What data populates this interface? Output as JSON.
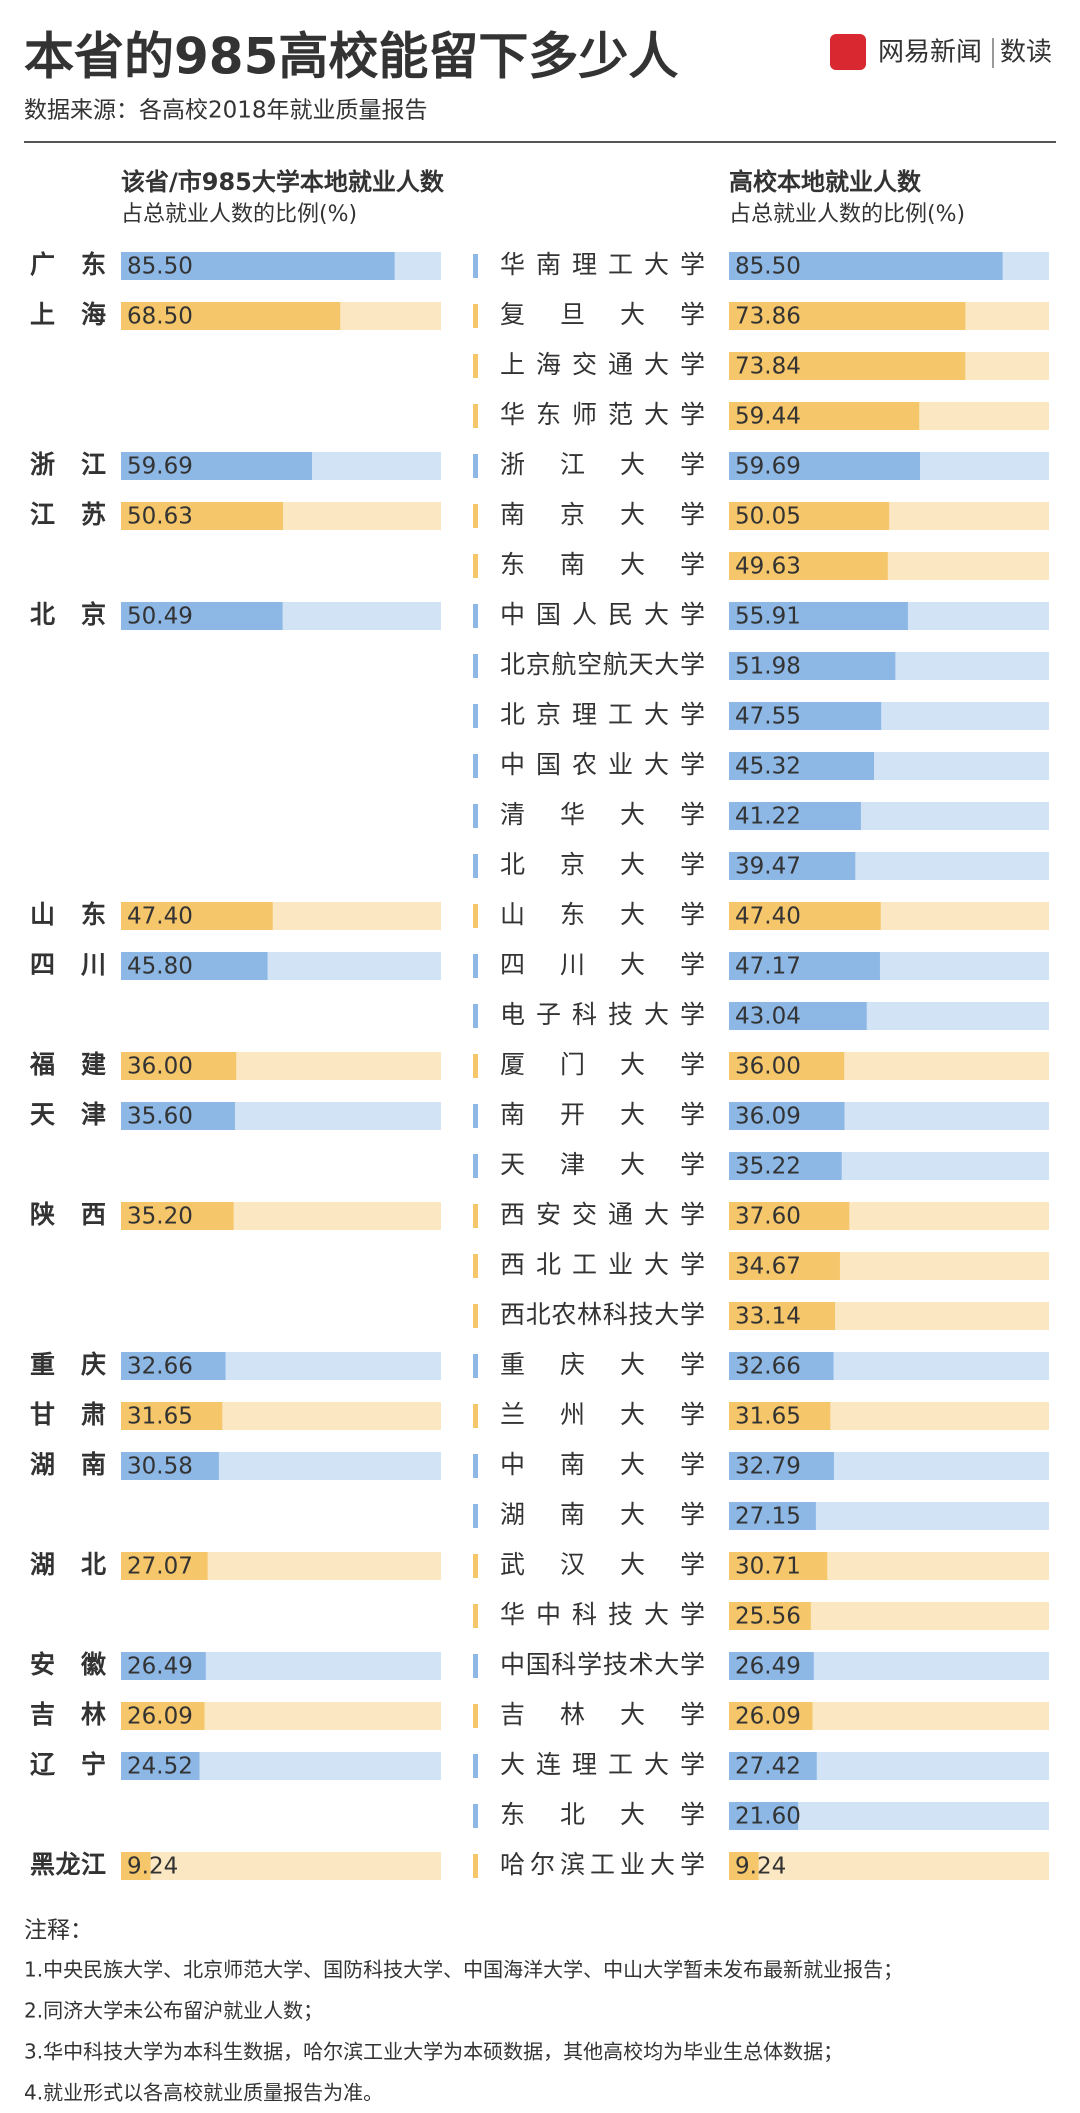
{
  "chart_data": {
    "type": "paired-bar",
    "title": "本省的985高校能留下多少人",
    "brand": "网易新闻",
    "brand_sub": "数读",
    "source": "数据来源：各高校2018年就业质量报告",
    "left_header": "该省/市985大学本地就业人数",
    "left_subheader": "占总就业人数的比例(%)",
    "right_header": "高校本地就业人数",
    "right_subheader": "占总就业人数的比例(%)",
    "xlim": [
      0,
      100
    ],
    "groups": [
      {
        "name": "广东",
        "color": "#8db8e6",
        "value": 85.5,
        "value_label": "85.50",
        "universities": [
          {
            "name": "华南理工大学",
            "value": 85.5,
            "value_label": "85.50"
          }
        ]
      },
      {
        "name": "上海",
        "color": "#f6c66a",
        "value": 68.5,
        "value_label": "68.50",
        "universities": [
          {
            "name": "复旦大学",
            "value": 73.86
          },
          {
            "name": "上海交通大学",
            "value": 73.84
          },
          {
            "name": "华东师范大学",
            "value": 59.44
          }
        ]
      },
      {
        "name": "浙江",
        "color": "#8db8e6",
        "value": 59.69,
        "universities": [
          {
            "name": "浙江大学",
            "value": 59.69
          }
        ]
      },
      {
        "name": "江苏",
        "color": "#f6c66a",
        "value": 50.63,
        "universities": [
          {
            "name": "南京大学",
            "value": 50.05
          },
          {
            "name": "东南大学",
            "value": 49.63
          }
        ]
      },
      {
        "name": "北京",
        "color": "#8db8e6",
        "value": 50.49,
        "universities": [
          {
            "name": "中国人民大学",
            "value": 55.91
          },
          {
            "name": "北京航空航天大学",
            "value": 51.98
          },
          {
            "name": "北京理工大学",
            "value": 47.55
          },
          {
            "name": "中国农业大学",
            "value": 45.32
          },
          {
            "name": "清华大学",
            "value": 41.22
          },
          {
            "name": "北京大学",
            "value": 39.47
          }
        ]
      },
      {
        "name": "山东",
        "color": "#f6c66a",
        "value": 47.4,
        "value_label": "47.40",
        "universities": [
          {
            "name": "山东大学",
            "value": 47.4,
            "value_label": "47.40"
          }
        ]
      },
      {
        "name": "四川",
        "color": "#8db8e6",
        "value": 45.8,
        "value_label": "45.80",
        "universities": [
          {
            "name": "四川大学",
            "value": 47.17
          },
          {
            "name": "电子科技大学",
            "value": 43.04
          }
        ]
      },
      {
        "name": "福建",
        "color": "#f6c66a",
        "value": 36,
        "value_label": "36.00",
        "universities": [
          {
            "name": "厦门大学",
            "value": 36,
            "value_label": "36.00"
          }
        ]
      },
      {
        "name": "天津",
        "color": "#8db8e6",
        "value": 35.6,
        "value_label": "35.60",
        "universities": [
          {
            "name": "南开大学",
            "value": 36.09
          },
          {
            "name": "天津大学",
            "value": 35.22
          }
        ]
      },
      {
        "name": "陕西",
        "color": "#f6c66a",
        "value": 35.2,
        "value_label": "35.20",
        "universities": [
          {
            "name": "西安交通大学",
            "value": 37.6,
            "value_label": "37.60"
          },
          {
            "name": "西北工业大学",
            "value": 34.67
          },
          {
            "name": "西北农林科技大学",
            "value": 33.14
          }
        ]
      },
      {
        "name": "重庆",
        "color": "#8db8e6",
        "value": 32.66,
        "universities": [
          {
            "name": "重庆大学",
            "value": 32.66
          }
        ]
      },
      {
        "name": "甘肃",
        "color": "#f6c66a",
        "value": 31.65,
        "universities": [
          {
            "name": "兰州大学",
            "value": 31.65
          }
        ]
      },
      {
        "name": "湖南",
        "color": "#8db8e6",
        "value": 30.58,
        "universities": [
          {
            "name": "中南大学",
            "value": 32.79
          },
          {
            "name": "湖南大学",
            "value": 27.15
          }
        ]
      },
      {
        "name": "湖北",
        "color": "#f6c66a",
        "value": 27.07,
        "universities": [
          {
            "name": "武汉大学",
            "value": 30.71
          },
          {
            "name": "华中科技大学",
            "value": 25.56
          }
        ]
      },
      {
        "name": "安徽",
        "color": "#8db8e6",
        "value": 26.49,
        "universities": [
          {
            "name": "中国科学技术大学",
            "value": 26.49
          }
        ]
      },
      {
        "name": "吉林",
        "color": "#f6c66a",
        "value": 26.09,
        "universities": [
          {
            "name": "吉林大学",
            "value": 26.09
          }
        ]
      },
      {
        "name": "辽宁",
        "color": "#8db8e6",
        "value": 24.52,
        "universities": [
          {
            "name": "大连理工大学",
            "value": 27.42
          },
          {
            "name": "东北大学",
            "value": 21.6,
            "value_label": "21.60"
          }
        ]
      },
      {
        "name": "黑龙江",
        "color": "#f6c66a",
        "value": 9.24,
        "universities": [
          {
            "name": "哈尔滨工业大学",
            "value": 9.24
          }
        ]
      }
    ],
    "notes_title": "注释：",
    "notes": [
      "1.中央民族大学、北京师范大学、国防科技大学、中国海洋大学、中山大学暂未发布最新就业报告；",
      "2.同济大学未公布留沪就业人数；",
      "3.华中科技大学为本科生数据，哈尔滨工业大学为本硕数据，其他高校均为毕业生总体数据；",
      "4.就业形式以各高校就业质量报告为准。"
    ]
  }
}
